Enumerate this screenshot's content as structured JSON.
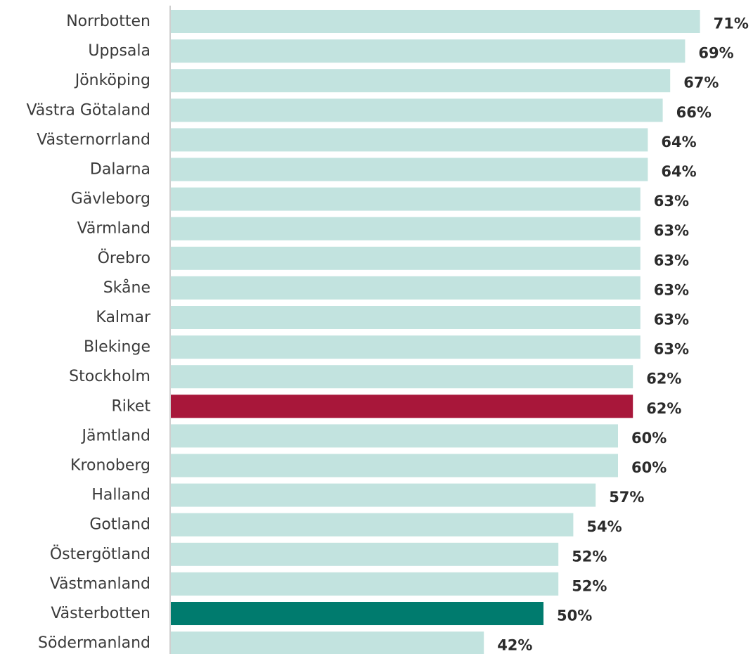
{
  "chart_data": {
    "type": "bar",
    "orientation": "horizontal",
    "categories": [
      "Norrbotten",
      "Uppsala",
      "Jönköping",
      "Västra Götaland",
      "Västernorrland",
      "Dalarna",
      "Gävleborg",
      "Värmland",
      "Örebro",
      "Skåne",
      "Kalmar",
      "Blekinge",
      "Stockholm",
      "Riket",
      "Jämtland",
      "Kronoberg",
      "Halland",
      "Gotland",
      "Östergötland",
      "Västmanland",
      "Västerbotten",
      "Södermanland"
    ],
    "values": [
      71,
      69,
      67,
      66,
      64,
      64,
      63,
      63,
      63,
      63,
      63,
      63,
      62,
      62,
      60,
      60,
      57,
      54,
      52,
      52,
      50,
      42
    ],
    "value_labels": [
      "71%",
      "69%",
      "67%",
      "66%",
      "64%",
      "64%",
      "63%",
      "63%",
      "63%",
      "63%",
      "63%",
      "63%",
      "62%",
      "62%",
      "60%",
      "60%",
      "57%",
      "54%",
      "52%",
      "52%",
      "50%",
      "42%"
    ],
    "highlight": {
      "Riket": "#a8173a",
      "Västerbotten": "#007b6e"
    },
    "bar_color": "#c2e3df",
    "axis_color": "#cfcfcf",
    "xlim": [
      0,
      100
    ],
    "grid": false,
    "legend": false
  }
}
